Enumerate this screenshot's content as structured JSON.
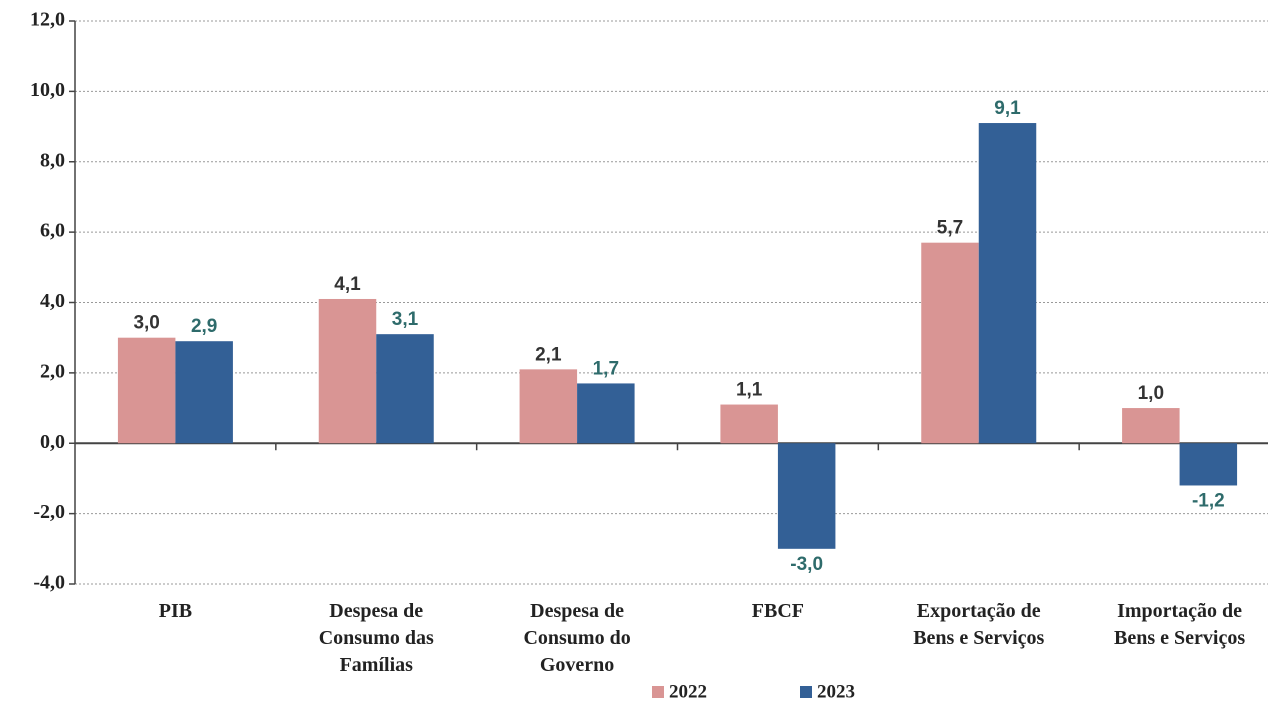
{
  "chart_data": {
    "type": "bar",
    "categories": [
      "PIB",
      "Despesa de\nConsumo das\nFamílias",
      "Despesa de\nConsumo do\nGoverno",
      "FBCF",
      "Exportação de\nBens e Serviços",
      "Importação de\nBens e Serviços"
    ],
    "series": [
      {
        "name": "2022",
        "color": "#d99594",
        "label_color": "#333333",
        "values": [
          3.0,
          4.1,
          2.1,
          1.1,
          5.7,
          1.0
        ],
        "value_labels": [
          "3,0",
          "4,1",
          "2,1",
          "1,1",
          "5,7",
          "1,0"
        ]
      },
      {
        "name": "2023",
        "color": "#336096",
        "label_color": "#2e6b6b",
        "values": [
          2.9,
          3.1,
          1.7,
          -3.0,
          9.1,
          -1.2
        ],
        "value_labels": [
          "2,9",
          "3,1",
          "1,7",
          "-3,0",
          "9,1",
          "-1,2"
        ]
      }
    ],
    "ylim": [
      -4,
      12
    ],
    "yticks": [
      {
        "value": -4,
        "label": "-4,0"
      },
      {
        "value": -2,
        "label": "-2,0"
      },
      {
        "value": 0,
        "label": "0,0"
      },
      {
        "value": 2,
        "label": "2,0"
      },
      {
        "value": 4,
        "label": "4,0"
      },
      {
        "value": 6,
        "label": "6,0"
      },
      {
        "value": 8,
        "label": "8,0"
      },
      {
        "value": 10,
        "label": "10,0"
      },
      {
        "value": 12,
        "label": "12,0"
      }
    ],
    "grid": true,
    "legend": "bottom"
  }
}
